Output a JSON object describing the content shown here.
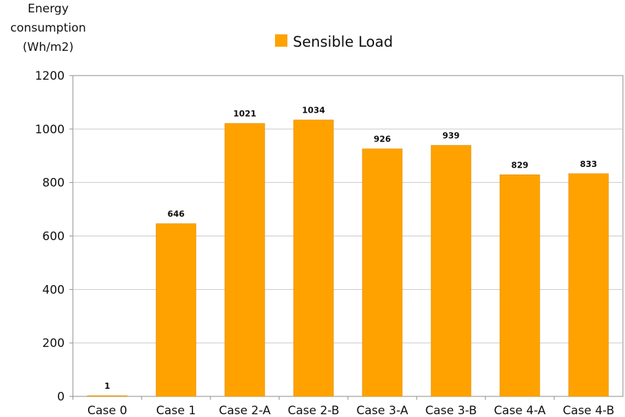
{
  "chart_data": {
    "type": "bar",
    "title": "",
    "ylabel_lines": [
      "Energy",
      "consumption",
      "(Wh/m2)"
    ],
    "xlabel": "",
    "categories": [
      "Case 0",
      "Case 1",
      "Case 2-A",
      "Case 2-B",
      "Case 3-A",
      "Case 3-B",
      "Case 4-A",
      "Case 4-B"
    ],
    "series": [
      {
        "name": "Sensible Load",
        "values": [
          1,
          646,
          1021,
          1034,
          926,
          939,
          829,
          833
        ]
      }
    ],
    "data_labels": [
      "1",
      "646",
      "1021",
      "1034",
      "926",
      "939",
      "829",
      "833"
    ],
    "ylim": [
      0,
      1200
    ],
    "yticks": [
      0,
      200,
      400,
      600,
      800,
      1000,
      1200
    ],
    "ytick_labels": [
      "0",
      "200",
      "400",
      "600",
      "800",
      "1000",
      "1200"
    ],
    "grid": true,
    "legend_position": "top-center",
    "colors": {
      "bar": "#FFA200",
      "bar_edge": "#D98A00",
      "grid": "#C8C8C8",
      "axis": "#888888"
    }
  }
}
